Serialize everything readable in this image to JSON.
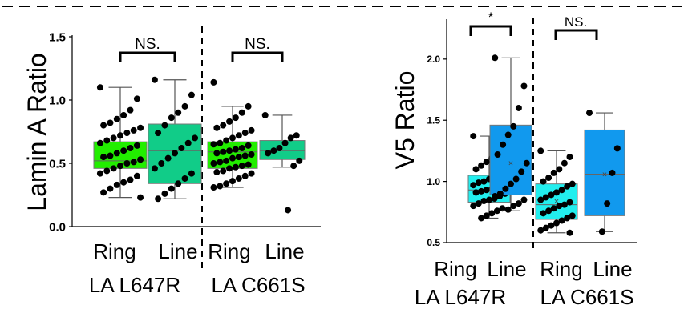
{
  "colors": {
    "ring_left": "#22ee00",
    "line_left": "#11cc88",
    "ring_right": "#22eeee",
    "line_right": "#1199ee"
  },
  "chart_data": [
    {
      "type": "box",
      "ylabel": "Lamin A Ratio",
      "ylim": [
        0,
        1.5
      ],
      "yticks": [
        "0.0",
        "0.5",
        "1.0",
        "1.5"
      ],
      "categories": [
        "Ring",
        "Line",
        "Ring",
        "Line"
      ],
      "groups": [
        "LA L647R",
        "LA C661S"
      ],
      "significance": [
        "NS.",
        "NS."
      ],
      "boxes": [
        {
          "name": "Ring",
          "group": "LA L647R",
          "q1": 0.46,
          "median": 0.52,
          "q3": 0.67,
          "whisker_low": 0.23,
          "whisker_high": 1.1,
          "points": [
            1.1,
            1.01,
            0.92,
            0.88,
            0.85,
            0.82,
            0.8,
            0.78,
            0.76,
            0.74,
            0.72,
            0.7,
            0.68,
            0.66,
            0.64,
            0.62,
            0.6,
            0.58,
            0.56,
            0.55,
            0.53,
            0.51,
            0.5,
            0.48,
            0.46,
            0.44,
            0.42,
            0.4,
            0.37,
            0.35,
            0.33,
            0.3,
            0.27,
            0.23
          ]
        },
        {
          "name": "Line",
          "group": "LA L647R",
          "q1": 0.34,
          "median": 0.6,
          "q3": 0.81,
          "whisker_low": 0.22,
          "whisker_high": 1.16,
          "points": [
            1.16,
            1.04,
            0.95,
            0.9,
            0.86,
            0.8,
            0.74,
            0.7,
            0.66,
            0.62,
            0.58,
            0.54,
            0.5,
            0.46,
            0.42,
            0.38,
            0.34,
            0.3,
            0.26,
            0.22
          ]
        },
        {
          "name": "Ring",
          "group": "LA C661S",
          "q1": 0.46,
          "median": 0.59,
          "q3": 0.67,
          "whisker_low": 0.31,
          "whisker_high": 0.95,
          "points": [
            1.14,
            0.95,
            0.9,
            0.86,
            0.83,
            0.8,
            0.78,
            0.76,
            0.74,
            0.72,
            0.7,
            0.68,
            0.66,
            0.65,
            0.64,
            0.62,
            0.61,
            0.6,
            0.59,
            0.58,
            0.57,
            0.56,
            0.55,
            0.54,
            0.52,
            0.51,
            0.5,
            0.49,
            0.48,
            0.47,
            0.46,
            0.44,
            0.43,
            0.42,
            0.4,
            0.38,
            0.36,
            0.34,
            0.32,
            0.31
          ]
        },
        {
          "name": "Line",
          "group": "LA C661S",
          "q1": 0.53,
          "median": 0.6,
          "q3": 0.68,
          "whisker_low": 0.47,
          "whisker_high": 0.88,
          "points": [
            0.88,
            0.72,
            0.7,
            0.66,
            0.62,
            0.6,
            0.58,
            0.52,
            0.48,
            0.13
          ]
        }
      ]
    },
    {
      "type": "box",
      "ylabel": "V5 Ratio",
      "ylim": [
        0.5,
        2.3
      ],
      "yticks": [
        "0.5",
        "1.0",
        "1.5",
        "2.0"
      ],
      "categories": [
        "Ring",
        "Line",
        "Ring",
        "Line"
      ],
      "groups": [
        "LA L647R",
        "LA C661S"
      ],
      "significance": [
        "*",
        "NS."
      ],
      "boxes": [
        {
          "name": "Ring",
          "group": "LA L647R",
          "q1": 0.83,
          "median": 0.93,
          "q3": 1.05,
          "whisker_low": 0.7,
          "whisker_high": 1.37,
          "mean": 0.94,
          "points": [
            1.37,
            1.25,
            1.22,
            1.19,
            1.16,
            1.13,
            1.1,
            1.08,
            1.06,
            1.04,
            1.02,
            1.0,
            0.99,
            0.97,
            0.96,
            0.95,
            0.94,
            0.93,
            0.92,
            0.91,
            0.9,
            0.88,
            0.86,
            0.85,
            0.84,
            0.82,
            0.8,
            0.78,
            0.76,
            0.74,
            0.72,
            0.7
          ]
        },
        {
          "name": "Line",
          "group": "LA L647R",
          "q1": 0.89,
          "median": 1.02,
          "q3": 1.46,
          "whisker_low": 0.76,
          "whisker_high": 2.01,
          "mean": 1.15,
          "points": [
            2.01,
            1.78,
            1.6,
            1.45,
            1.38,
            1.3,
            1.22,
            1.15,
            1.08,
            1.02,
            0.98,
            0.94,
            0.9,
            0.88,
            0.85,
            0.82,
            0.8,
            0.77
          ]
        },
        {
          "name": "Ring",
          "group": "LA C661S",
          "q1": 0.69,
          "median": 0.81,
          "q3": 0.98,
          "whisker_low": 0.58,
          "whisker_high": 1.25,
          "mean": 0.84,
          "points": [
            1.25,
            1.2,
            1.15,
            1.1,
            1.07,
            1.03,
            1.0,
            0.98,
            0.96,
            0.93,
            0.91,
            0.89,
            0.87,
            0.85,
            0.83,
            0.81,
            0.8,
            0.78,
            0.76,
            0.74,
            0.72,
            0.7,
            0.68,
            0.66,
            0.64,
            0.62,
            0.6,
            0.58
          ]
        },
        {
          "name": "Line",
          "group": "LA C661S",
          "q1": 0.72,
          "median": 1.06,
          "q3": 1.42,
          "whisker_low": 0.59,
          "whisker_high": 1.56,
          "mean": 1.06,
          "points": [
            1.56,
            1.27,
            1.07,
            0.82,
            0.59
          ]
        }
      ]
    }
  ]
}
